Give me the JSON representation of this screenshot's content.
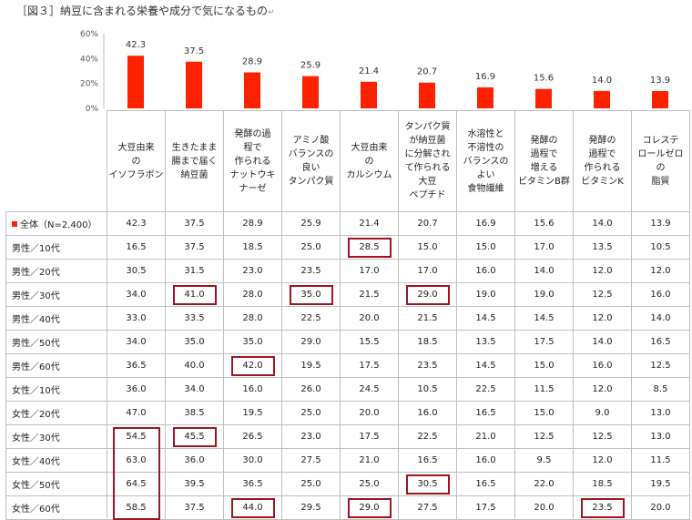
{
  "title": "［図３］納豆に含まれる栄養や成分で気になるもの",
  "title_mark": "↵",
  "accent_color": "#ff2200",
  "highlight_color": "#a01420",
  "chart_data": {
    "type": "bar",
    "categories": [
      [
        "大豆由来",
        "の",
        "イソフラボン"
      ],
      [
        "生きたまま",
        "腸まで届く",
        "納豆菌"
      ],
      [
        "発酵の過",
        "程で",
        "作られる",
        "ナットウキ",
        "ナーゼ"
      ],
      [
        "アミノ酸",
        "バランスの",
        "良い",
        "タンパク質"
      ],
      [
        "大豆由来",
        "の",
        "カルシウム"
      ],
      [
        "タンパク質",
        "が納豆菌",
        "に分解され",
        "て作られる",
        "大豆",
        "ペプチド"
      ],
      [
        "水溶性と",
        "不溶性の",
        "バランスの",
        "よい",
        "食物繊維"
      ],
      [
        "発酵の",
        "過程で",
        "増える",
        "ビタミンB群"
      ],
      [
        "発酵の",
        "過程で",
        "作られる",
        "ビタミンK"
      ],
      [
        "コレステ",
        "ロールゼロ",
        "の",
        "脂質"
      ]
    ],
    "values": [
      42.3,
      37.5,
      28.9,
      25.9,
      21.4,
      20.7,
      16.9,
      15.6,
      14.0,
      13.9
    ],
    "value_labels": [
      "42.3",
      "37.5",
      "28.9",
      "25.9",
      "21.4",
      "20.7",
      "16.9",
      "15.6",
      "14.0",
      "13.9"
    ],
    "ylim": [
      0,
      60
    ],
    "yticks": [
      "0%",
      "20%",
      "40%",
      "60%"
    ],
    "ytick_values": [
      0,
      20,
      40,
      60
    ],
    "bar_color": "#ff2200"
  },
  "table": {
    "rows": [
      {
        "label": "全体（N=2,400）",
        "marker": true,
        "values": [
          "42.3",
          "37.5",
          "28.9",
          "25.9",
          "21.4",
          "20.7",
          "16.9",
          "15.6",
          "14.0",
          "13.9"
        ],
        "highlight": []
      },
      {
        "label": "男性／10代",
        "marker": false,
        "values": [
          "16.5",
          "37.5",
          "18.5",
          "25.0",
          "28.5",
          "15.0",
          "15.0",
          "17.0",
          "13.5",
          "10.5"
        ],
        "highlight": [
          4
        ]
      },
      {
        "label": "男性／20代",
        "marker": false,
        "values": [
          "30.5",
          "31.5",
          "23.0",
          "23.5",
          "17.0",
          "17.0",
          "16.0",
          "14.0",
          "12.0",
          "12.0"
        ],
        "highlight": []
      },
      {
        "label": "男性／30代",
        "marker": false,
        "values": [
          "34.0",
          "41.0",
          "28.0",
          "35.0",
          "21.5",
          "29.0",
          "19.0",
          "19.0",
          "12.5",
          "16.0"
        ],
        "highlight": [
          1,
          3,
          5
        ]
      },
      {
        "label": "男性／40代",
        "marker": false,
        "values": [
          "33.0",
          "33.5",
          "28.0",
          "22.5",
          "20.0",
          "21.5",
          "14.5",
          "14.5",
          "12.0",
          "14.0"
        ],
        "highlight": []
      },
      {
        "label": "男性／50代",
        "marker": false,
        "values": [
          "34.0",
          "35.0",
          "35.0",
          "29.0",
          "15.5",
          "18.5",
          "13.5",
          "17.5",
          "14.0",
          "16.5"
        ],
        "highlight": []
      },
      {
        "label": "男性／60代",
        "marker": false,
        "values": [
          "36.5",
          "40.0",
          "42.0",
          "19.5",
          "17.5",
          "23.5",
          "14.5",
          "15.0",
          "16.0",
          "12.5"
        ],
        "highlight": [
          2
        ]
      },
      {
        "label": "女性／10代",
        "marker": false,
        "values": [
          "36.0",
          "34.0",
          "16.0",
          "26.0",
          "24.5",
          "10.5",
          "22.5",
          "11.5",
          "12.0",
          "8.5"
        ],
        "highlight": []
      },
      {
        "label": "女性／20代",
        "marker": false,
        "values": [
          "47.0",
          "38.5",
          "19.5",
          "25.0",
          "20.0",
          "16.0",
          "16.5",
          "15.0",
          "9.0",
          "13.0"
        ],
        "highlight": []
      },
      {
        "label": "女性／30代",
        "marker": false,
        "values": [
          "54.5",
          "45.5",
          "26.5",
          "23.0",
          "17.5",
          "22.5",
          "21.0",
          "12.5",
          "12.5",
          "13.0"
        ],
        "highlight": [
          1
        ]
      },
      {
        "label": "女性／40代",
        "marker": false,
        "values": [
          "63.0",
          "36.0",
          "30.0",
          "27.5",
          "21.0",
          "16.5",
          "16.0",
          "9.5",
          "12.0",
          "11.5"
        ],
        "highlight": []
      },
      {
        "label": "女性／50代",
        "marker": false,
        "values": [
          "64.5",
          "39.5",
          "36.5",
          "25.0",
          "25.0",
          "30.5",
          "16.5",
          "22.0",
          "18.5",
          "19.5"
        ],
        "highlight": [
          5
        ]
      },
      {
        "label": "女性／60代",
        "marker": false,
        "values": [
          "58.5",
          "37.5",
          "44.0",
          "29.5",
          "29.0",
          "27.5",
          "17.5",
          "20.0",
          "23.5",
          "20.0"
        ],
        "highlight": [
          2,
          4,
          8
        ]
      }
    ],
    "column_highlight": {
      "column": 0,
      "from_row": 9,
      "to_row": 12
    }
  }
}
